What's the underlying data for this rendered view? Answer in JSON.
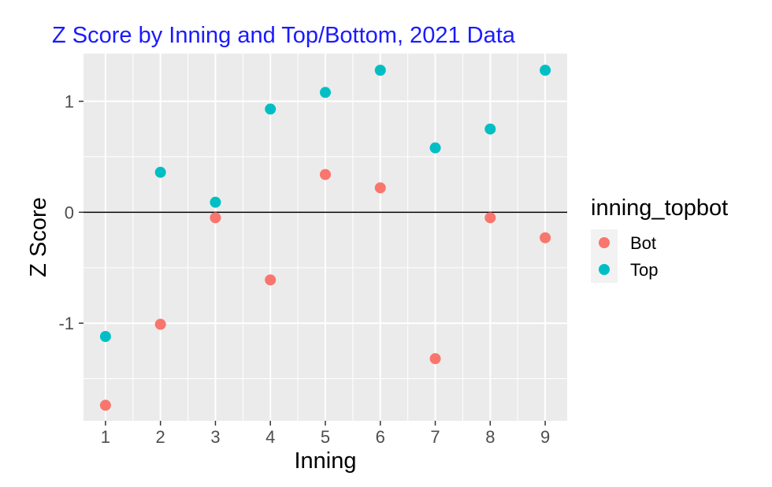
{
  "chart_data": {
    "type": "scatter",
    "title": "Z Score by Inning and Top/Bottom, 2021 Data",
    "title_color": "#1a1aff",
    "xlabel": "Inning",
    "ylabel": "Z Score",
    "x_ticks": [
      1,
      2,
      3,
      4,
      5,
      6,
      7,
      8,
      9
    ],
    "y_ticks": [
      -1,
      0,
      1
    ],
    "y_tick_labels": [
      "-1",
      "0",
      "1"
    ],
    "xlim": [
      0.6,
      9.4
    ],
    "ylim": [
      -1.88,
      1.43
    ],
    "grid": true,
    "panel_background": "#ebebeb",
    "hline": 0,
    "legend": {
      "title": "inning_topbot",
      "placement": "right",
      "entries": [
        "Bot",
        "Top"
      ]
    },
    "series": [
      {
        "name": "Bot",
        "color": "#f8766d",
        "x": [
          1,
          2,
          3,
          4,
          5,
          6,
          7,
          8,
          9
        ],
        "y": [
          -1.74,
          -1.01,
          -0.05,
          -0.61,
          0.34,
          0.22,
          -1.32,
          -0.05,
          -0.23
        ]
      },
      {
        "name": "Top",
        "color": "#00bfc4",
        "x": [
          1,
          2,
          3,
          4,
          5,
          6,
          7,
          8,
          9
        ],
        "y": [
          -1.12,
          0.36,
          0.09,
          0.93,
          1.08,
          1.28,
          0.58,
          0.75,
          1.28
        ]
      }
    ]
  }
}
